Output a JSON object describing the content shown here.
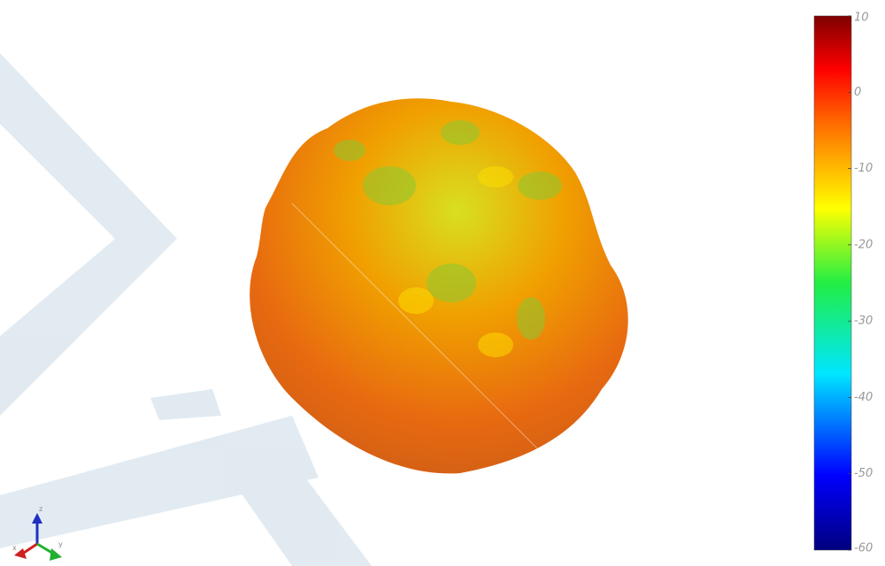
{
  "colorbar": {
    "lim": [
      -60,
      10
    ],
    "ticks": [
      10,
      0,
      -10,
      -20,
      -30,
      -40,
      -50,
      -60
    ]
  },
  "axes_triad": {
    "labels": [
      "x",
      "y",
      "z"
    ]
  }
}
